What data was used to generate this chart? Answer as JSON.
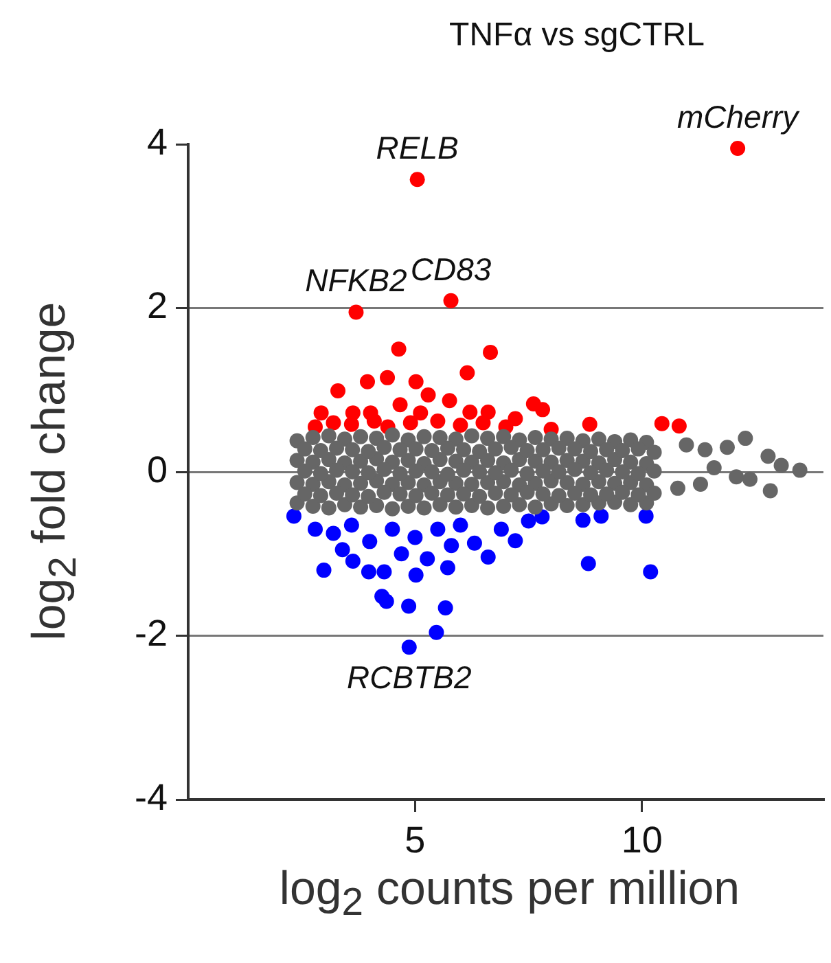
{
  "chart_data": {
    "type": "scatter",
    "title": "TNFα vs sgCTRL",
    "xlabel": "log$_{2}$ counts per million",
    "ylabel": "log$_{2}$ fold change",
    "xlim": [
      0,
      14
    ],
    "xticks": [
      5,
      10
    ],
    "ylim": [
      -4,
      4
    ],
    "yticks": [
      -4,
      -2,
      0,
      2,
      4
    ],
    "grid": "y",
    "legend": false,
    "marker": "circle",
    "annotations": [
      {
        "text": "RELB",
        "x": 5.05,
        "y": 3.57
      },
      {
        "text": "mCherry",
        "x": 12.11,
        "y": 3.95
      },
      {
        "text": "NFKB2",
        "x": 3.7,
        "y": 1.95
      },
      {
        "text": "CD83",
        "x": 5.79,
        "y": 2.09
      },
      {
        "text": "RCBTB2",
        "x": 4.87,
        "y": -2.14
      }
    ],
    "series": [
      {
        "color": "#666666",
        "x": [
          2.4,
          2.75,
          3.1,
          3.45,
          3.8,
          4.15,
          4.5,
          4.85,
          5.2,
          5.55,
          5.9,
          6.25,
          6.6,
          6.95,
          7.3,
          7.65,
          8.0,
          8.35,
          8.7,
          9.05,
          9.4,
          9.75,
          10.1,
          2.4,
          2.75,
          3.1,
          3.45,
          3.8,
          4.15,
          4.5,
          4.85,
          5.2,
          5.55,
          5.9,
          6.25,
          6.6,
          6.95,
          7.3,
          7.65,
          8.0,
          8.35,
          8.7,
          9.05,
          9.4,
          9.75,
          10.1,
          2.4,
          2.75,
          3.1,
          3.45,
          3.8,
          4.15,
          4.5,
          4.85,
          5.2,
          5.55,
          5.9,
          6.25,
          6.6,
          6.95,
          7.3,
          7.65,
          8.0,
          8.35,
          8.7,
          9.05,
          9.4,
          9.75,
          10.1,
          2.4,
          2.75,
          3.1,
          3.45,
          3.8,
          4.15,
          4.5,
          4.85,
          5.2,
          5.55,
          5.9,
          6.25,
          6.6,
          6.95,
          7.3,
          7.65,
          8.0,
          8.35,
          8.7,
          9.05,
          9.4,
          9.75,
          10.1,
          2.57,
          2.92,
          3.27,
          3.62,
          3.97,
          4.32,
          4.67,
          5.02,
          5.37,
          5.72,
          6.07,
          6.42,
          6.77,
          7.12,
          7.47,
          7.82,
          8.17,
          8.52,
          8.87,
          9.22,
          9.57,
          9.92,
          10.27,
          2.57,
          2.92,
          3.27,
          3.62,
          3.97,
          4.32,
          4.67,
          5.02,
          5.37,
          5.72,
          6.07,
          6.42,
          6.77,
          7.12,
          7.47,
          7.82,
          8.17,
          8.52,
          8.87,
          9.22,
          9.57,
          9.92,
          10.27,
          2.57,
          2.92,
          3.27,
          3.62,
          3.97,
          4.32,
          4.67,
          5.02,
          5.37,
          5.72,
          6.07,
          6.42,
          6.77,
          7.12,
          7.47,
          7.82,
          8.17,
          8.52,
          8.87,
          9.22,
          9.57,
          9.92,
          10.27,
          10.98,
          12.28,
          11.88,
          12.78,
          13.07,
          13.48,
          12.83,
          12.38,
          12.08,
          11.29,
          10.79,
          11.39,
          11.59
        ],
        "values": [
          0.38,
          0.42,
          0.44,
          0.4,
          0.43,
          0.41,
          0.45,
          0.39,
          0.43,
          0.42,
          0.4,
          0.44,
          0.41,
          0.43,
          0.39,
          0.42,
          0.4,
          0.41,
          0.38,
          0.4,
          0.37,
          0.39,
          0.36,
          0.14,
          0.12,
          0.15,
          0.11,
          0.13,
          0.16,
          0.12,
          0.14,
          0.1,
          0.15,
          0.13,
          0.12,
          0.14,
          0.11,
          0.15,
          0.13,
          0.12,
          0.14,
          0.13,
          0.11,
          0.15,
          0.12,
          0.1,
          -0.13,
          -0.15,
          -0.12,
          -0.16,
          -0.14,
          -0.11,
          -0.15,
          -0.13,
          -0.16,
          -0.12,
          -0.14,
          -0.15,
          -0.13,
          -0.12,
          -0.16,
          -0.14,
          -0.11,
          -0.13,
          -0.15,
          -0.12,
          -0.14,
          -0.13,
          -0.16,
          -0.38,
          -0.42,
          -0.44,
          -0.4,
          -0.43,
          -0.41,
          -0.45,
          -0.42,
          -0.44,
          -0.4,
          -0.43,
          -0.41,
          -0.44,
          -0.42,
          -0.4,
          -0.43,
          -0.39,
          -0.41,
          -0.4,
          -0.38,
          -0.37,
          -0.4,
          -0.38,
          0.28,
          0.26,
          0.29,
          0.27,
          0.25,
          0.3,
          0.27,
          0.28,
          0.26,
          0.29,
          0.27,
          0.25,
          0.28,
          0.3,
          0.26,
          0.27,
          0.29,
          0.28,
          0.25,
          0.27,
          0.26,
          0.28,
          0.24,
          0.01,
          -0.02,
          0.02,
          0,
          -0.01,
          0.03,
          -0.02,
          0.01,
          0,
          -0.03,
          0.02,
          0,
          -0.01,
          0.02,
          -0.02,
          0.01,
          0,
          0.03,
          -0.01,
          0.02,
          0,
          -0.02,
          0.01,
          -0.27,
          -0.29,
          -0.26,
          -0.28,
          -0.3,
          -0.25,
          -0.27,
          -0.29,
          -0.26,
          -0.28,
          -0.27,
          -0.3,
          -0.26,
          -0.28,
          -0.25,
          -0.27,
          -0.29,
          -0.26,
          -0.28,
          -0.27,
          -0.25,
          -0.28,
          -0.26,
          0.33,
          0.41,
          0.3,
          0.19,
          0.08,
          0.02,
          -0.23,
          -0.09,
          -0.06,
          -0.15,
          -0.2,
          0.27,
          0.05
        ]
      },
      {
        "color": "#ff0000",
        "x": [
          5.05,
          12.11,
          3.7,
          5.79,
          4.64,
          6.66,
          6.15,
          3.3,
          3.95,
          4.39,
          5.02,
          5.29,
          4.67,
          5.76,
          7.61,
          7.81,
          6.61,
          7.21,
          2.93,
          3.63,
          4.02,
          5.12,
          6.21,
          8.85,
          10.44,
          10.82,
          3.2,
          3.6,
          4.1,
          4.4,
          4.9,
          5.5,
          6.0,
          6.5,
          7.0,
          8.0,
          2.8
        ],
        "values": [
          3.57,
          3.95,
          1.95,
          2.09,
          1.5,
          1.46,
          1.21,
          0.99,
          1.1,
          1.15,
          1.1,
          0.94,
          0.82,
          0.87,
          0.83,
          0.76,
          0.73,
          0.65,
          0.72,
          0.72,
          0.72,
          0.72,
          0.73,
          0.58,
          0.59,
          0.56,
          0.6,
          0.58,
          0.62,
          0.55,
          0.6,
          0.62,
          0.57,
          0.6,
          0.55,
          0.52,
          0.55
        ]
      },
      {
        "color": "#0000ff",
        "x": [
          4.87,
          5.47,
          4.86,
          5.67,
          4.37,
          4.27,
          2.99,
          5.02,
          5.72,
          4.32,
          3.98,
          8.82,
          10.19,
          6.61,
          3.63,
          5.27,
          7.21,
          6.31,
          8.7,
          9.1,
          10.09,
          2.33,
          3.2,
          3.6,
          4.0,
          4.5,
          5.0,
          5.5,
          6.0,
          6.9,
          7.5,
          3.4,
          4.7,
          2.8,
          5.8,
          7.8
        ],
        "values": [
          -2.14,
          -1.96,
          -1.64,
          -1.66,
          -1.58,
          -1.52,
          -1.2,
          -1.26,
          -1.17,
          -1.22,
          -1.22,
          -1.12,
          -1.22,
          -1.04,
          -1.09,
          -1.06,
          -0.84,
          -0.87,
          -0.59,
          -0.54,
          -0.54,
          -0.54,
          -0.75,
          -0.65,
          -0.85,
          -0.7,
          -0.8,
          -0.7,
          -0.65,
          -0.7,
          -0.6,
          -0.95,
          -1.0,
          -0.7,
          -0.9,
          -0.55
        ]
      }
    ]
  }
}
